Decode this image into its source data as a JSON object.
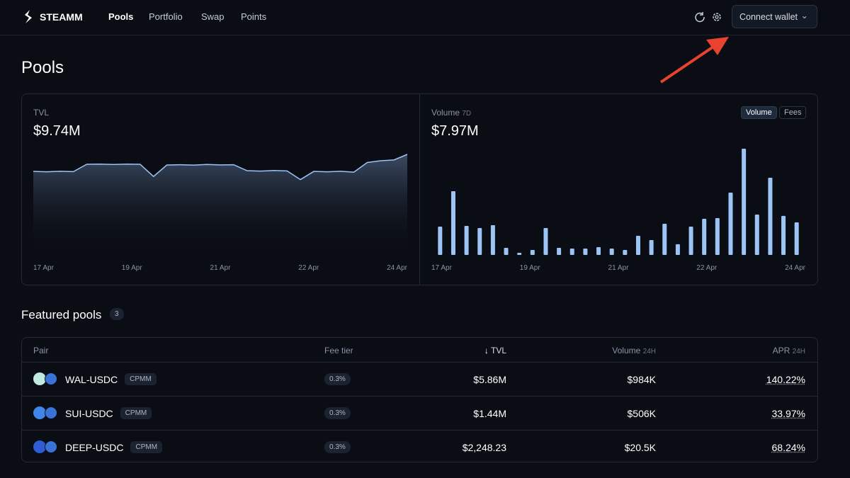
{
  "nav": {
    "brand": "STEAMM",
    "links": [
      "Pools",
      "Portfolio",
      "Swap",
      "Points"
    ],
    "connect": "Connect wallet"
  },
  "page_title": "Pools",
  "charts": [
    {
      "type": "line",
      "title": "TVL",
      "headline": "$9.74M",
      "color": "#9cc4f5",
      "values": [
        8.09,
        8.05,
        8.1,
        8.07,
        8.78,
        8.8,
        8.76,
        8.8,
        8.78,
        7.6,
        8.71,
        8.74,
        8.7,
        8.76,
        8.72,
        8.74,
        8.16,
        8.12,
        8.18,
        8.14,
        7.3,
        8.09,
        8.05,
        8.1,
        8.02,
        8.95,
        9.12,
        9.2,
        9.74
      ],
      "ylim": [
        0,
        9.74
      ],
      "x_labels": [
        "17 Apr",
        "19 Apr",
        "21 Apr",
        "22 Apr",
        "24 Apr"
      ]
    },
    {
      "type": "bar",
      "title": "Volume",
      "subtitle": "7D",
      "headline": "$7.97M",
      "color": "#9cc4f5",
      "toggles": [
        "Volume",
        "Fees"
      ],
      "values": [
        284,
        639,
        291,
        270,
        298,
        71,
        21,
        50,
        270,
        71,
        64,
        64,
        78,
        64,
        50,
        192,
        149,
        312,
        107,
        284,
        362,
        369,
        625,
        1065,
        405,
        774,
        391,
        327
      ],
      "ylim": [
        0,
        1065
      ],
      "x_labels": [
        "17 Apr",
        "19 Apr",
        "21 Apr",
        "22 Apr",
        "24 Apr"
      ]
    }
  ],
  "featured": {
    "title": "Featured pools",
    "count": "3"
  },
  "table": {
    "headers": [
      "Pair",
      "Fee tier",
      "TVL",
      "Volume",
      "APR"
    ],
    "header_suffix": {
      "volume": "24H",
      "apr": "24H"
    },
    "rows": [
      [
        "WAL-USDC",
        "CPMM",
        "0.3%",
        "$5.86M",
        "$984K",
        "140.22%"
      ],
      [
        "SUI-USDC",
        "CPMM",
        "0.3%",
        "$1.44M",
        "$506K",
        "33.97%"
      ],
      [
        "DEEP-USDC",
        "CPMM",
        "0.3%",
        "$2,248.23",
        "$20.5K",
        "68.24%"
      ]
    ]
  }
}
